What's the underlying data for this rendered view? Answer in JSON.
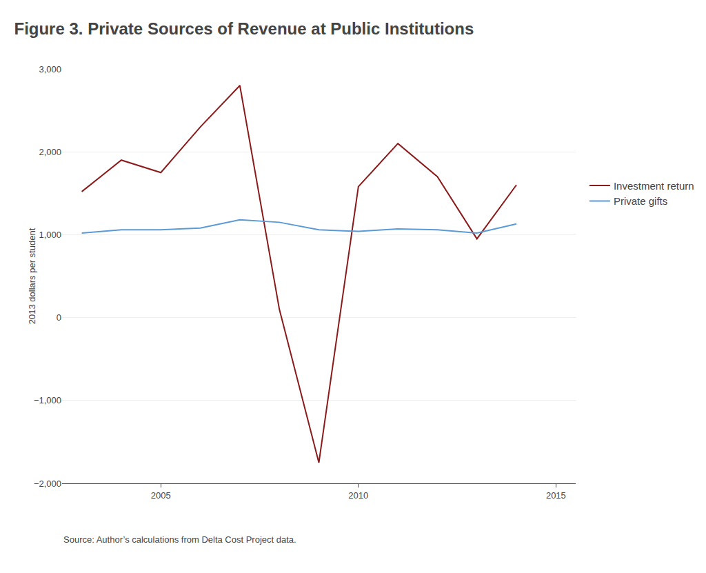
{
  "chart_data": {
    "type": "line",
    "title": "Figure 3. Private Sources of Revenue at Public Institutions",
    "ylabel": "2013 dollars per student",
    "annotations": [
      "Source: Author’s calculations from Delta Cost Project data."
    ],
    "x": [
      2003,
      2004,
      2005,
      2006,
      2007,
      2008,
      2009,
      2010,
      2011,
      2012,
      2013,
      2014
    ],
    "series": [
      {
        "name": "Investment return",
        "color": "#8B1A1A",
        "values": [
          1520,
          1900,
          1750,
          2300,
          2800,
          100,
          -1750,
          1580,
          2100,
          1700,
          950,
          1600
        ]
      },
      {
        "name": "Private gifts",
        "color": "#5B9BD5",
        "values": [
          1020,
          1060,
          1060,
          1080,
          1180,
          1150,
          1060,
          1040,
          1070,
          1060,
          1020,
          1130
        ]
      }
    ],
    "xlim": [
      2002.5,
      2015.5
    ],
    "xticks": [
      2005,
      2010,
      2015
    ],
    "ylim": [
      -2000,
      3000
    ],
    "yticks": [
      {
        "value": -2000,
        "label": "−2,000"
      },
      {
        "value": -1000,
        "label": "−1,000"
      },
      0,
      {
        "value": 1000,
        "label": "1,000"
      },
      {
        "value": 2000,
        "label": "2,000"
      },
      {
        "value": 3000,
        "label": "3,000"
      }
    ],
    "grid": "y",
    "legend": "right"
  }
}
